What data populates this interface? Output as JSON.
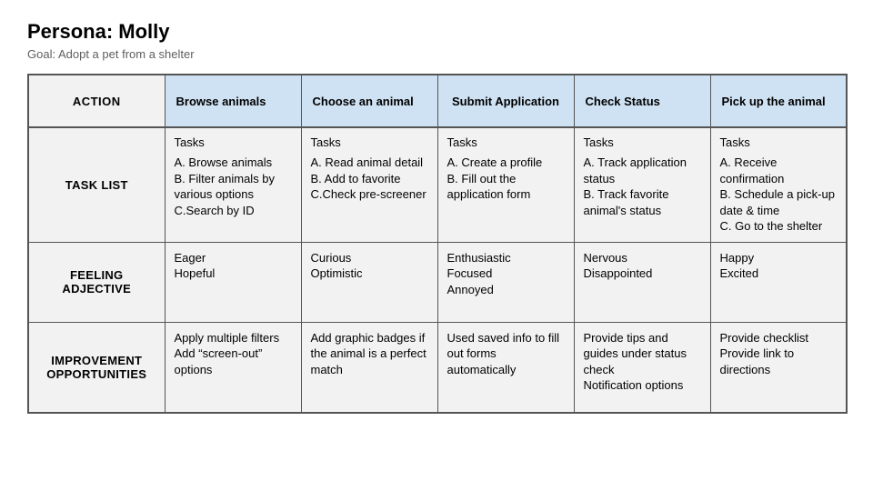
{
  "persona": {
    "title": "Persona: Molly",
    "goal": "Goal: Adopt a pet from a shelter"
  },
  "colors": {
    "header_bg": "#cfe2f3",
    "cell_bg": "#f2f2f2",
    "border": "#555555",
    "page_bg": "#ffffff",
    "goal_text": "#5f5f5f"
  },
  "headers": {
    "action": "ACTION",
    "cols": [
      "Browse animals",
      "Choose an animal",
      "Submit Application",
      "Check Status",
      "Pick up the animal"
    ]
  },
  "rows": {
    "task_list": {
      "label": "TASK LIST",
      "section_title": "Tasks",
      "cells": [
        "A. Browse animals\nB. Filter animals by various options\nC.Search by ID",
        "A. Read animal detail\nB. Add to favorite\nC.Check pre-screener",
        "A. Create a profile\nB. Fill out the application form",
        "A. Track application status\nB. Track favorite animal's status",
        "A. Receive confirmation\nB. Schedule a pick-up date & time\nC. Go to the shelter"
      ]
    },
    "feeling": {
      "label": "FEELING ADJECTIVE",
      "cells": [
        "Eager\nHopeful",
        "Curious\nOptimistic",
        "Enthusiastic\nFocused\nAnnoyed",
        "Nervous\nDisappointed",
        "Happy\nExcited"
      ]
    },
    "improvement": {
      "label": "IMPROVEMENT OPPORTUNITIES",
      "cells": [
        "Apply multiple filters\nAdd “screen-out” options",
        "Add graphic badges if the animal is a perfect match",
        "Used saved info to fill out forms automatically",
        "Provide tips and guides under status check\nNotification options",
        "Provide checklist\nProvide link to directions"
      ]
    }
  }
}
